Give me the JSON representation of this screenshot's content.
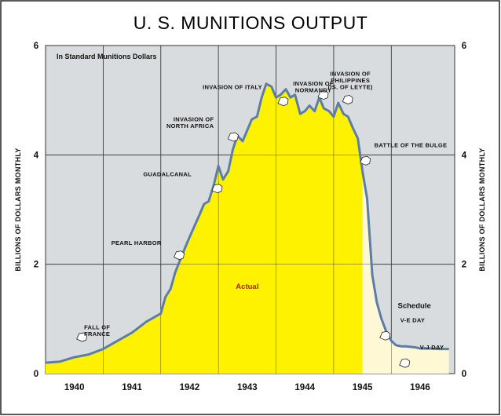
{
  "chart_data": {
    "type": "area",
    "title": "U. S. MUNITIONS OUTPUT",
    "subtitle": "In Standard Munitions Dollars",
    "ylabel": "BILLIONS OF DOLLARS MONTHLY",
    "xlabel": "",
    "ylim": [
      0,
      6
    ],
    "xlim": [
      1939.5,
      1946.6
    ],
    "yticks": [
      "0",
      "2",
      "4",
      "6"
    ],
    "xticks": [
      {
        "label": "1940",
        "value": 1940.0
      },
      {
        "label": "1941",
        "value": 1941.0
      },
      {
        "label": "1942",
        "value": 1942.0
      },
      {
        "label": "1943",
        "value": 1943.0
      },
      {
        "label": "1944",
        "value": 1944.0
      },
      {
        "label": "1945",
        "value": 1945.0
      },
      {
        "label": "1946",
        "value": 1946.0
      }
    ],
    "grid": true,
    "series": [
      {
        "name": "Actual",
        "color": "#fff200",
        "x": [
          1939.5,
          1939.75,
          1940.0,
          1940.25,
          1940.5,
          1940.75,
          1941.0,
          1941.25,
          1941.5,
          1941.58,
          1941.67,
          1941.75,
          1941.92,
          1942.0,
          1942.17,
          1942.25,
          1942.33,
          1942.42,
          1942.5,
          1942.58,
          1942.67,
          1942.75,
          1942.83,
          1942.92,
          1943.0,
          1943.08,
          1943.17,
          1943.25,
          1943.33,
          1943.42,
          1943.5,
          1943.58,
          1943.67,
          1943.75,
          1943.83,
          1943.92,
          1944.0,
          1944.08,
          1944.17,
          1944.25,
          1944.33,
          1944.42,
          1944.5,
          1944.58,
          1944.67,
          1944.75,
          1944.83,
          1944.92,
          1945.0
        ],
        "values": [
          0.2,
          0.22,
          0.3,
          0.35,
          0.45,
          0.6,
          0.75,
          0.95,
          1.1,
          1.4,
          1.55,
          1.85,
          2.3,
          2.5,
          2.9,
          3.1,
          3.15,
          3.45,
          3.8,
          3.55,
          3.7,
          4.1,
          4.35,
          4.25,
          4.45,
          4.65,
          4.7,
          5.05,
          5.3,
          5.25,
          5.05,
          5.1,
          5.2,
          5.05,
          5.1,
          4.75,
          4.8,
          4.9,
          4.8,
          5.05,
          4.85,
          4.8,
          4.7,
          4.95,
          4.75,
          4.7,
          4.5,
          4.3,
          3.7
        ]
      },
      {
        "name": "Schedule",
        "color": "#fff8d4",
        "x": [
          1945.0,
          1945.08,
          1945.17,
          1945.25,
          1945.33,
          1945.42,
          1945.5,
          1945.58,
          1945.67,
          1945.75,
          1945.83,
          1945.92,
          1946.0,
          1946.17,
          1946.33,
          1946.5
        ],
        "values": [
          3.7,
          3.2,
          1.8,
          1.3,
          1.0,
          0.75,
          0.6,
          0.52,
          0.5,
          0.5,
          0.49,
          0.48,
          0.46,
          0.46,
          0.45,
          0.45
        ]
      }
    ],
    "annotations": [
      {
        "lines": [
          "FALL OF",
          "FRANCE"
        ],
        "x": 1940.45
      },
      {
        "lines": [
          "PEARL HARBOR"
        ],
        "x": 1941.92
      },
      {
        "lines": [
          "GUADALCANAL"
        ],
        "x": 1942.58
      },
      {
        "lines": [
          "INVASION OF",
          "NORTH AFRICA"
        ],
        "x": 1942.83
      },
      {
        "lines": [
          "INVASION OF ITALY"
        ],
        "x": 1943.67
      },
      {
        "lines": [
          "INVASION OF",
          "NORMANDY"
        ],
        "x": 1944.42
      },
      {
        "lines": [
          "INVASION OF",
          "PHILIPPINES",
          "(IS. OF LEYTE)"
        ],
        "x": 1944.79
      },
      {
        "lines": [
          "BATTLE OF THE BULGE"
        ],
        "x": 1944.96
      },
      {
        "lines": [
          "V-E DAY"
        ],
        "x": 1945.33
      },
      {
        "lines": [
          "V-J DAY"
        ],
        "x": 1945.67
      }
    ]
  }
}
